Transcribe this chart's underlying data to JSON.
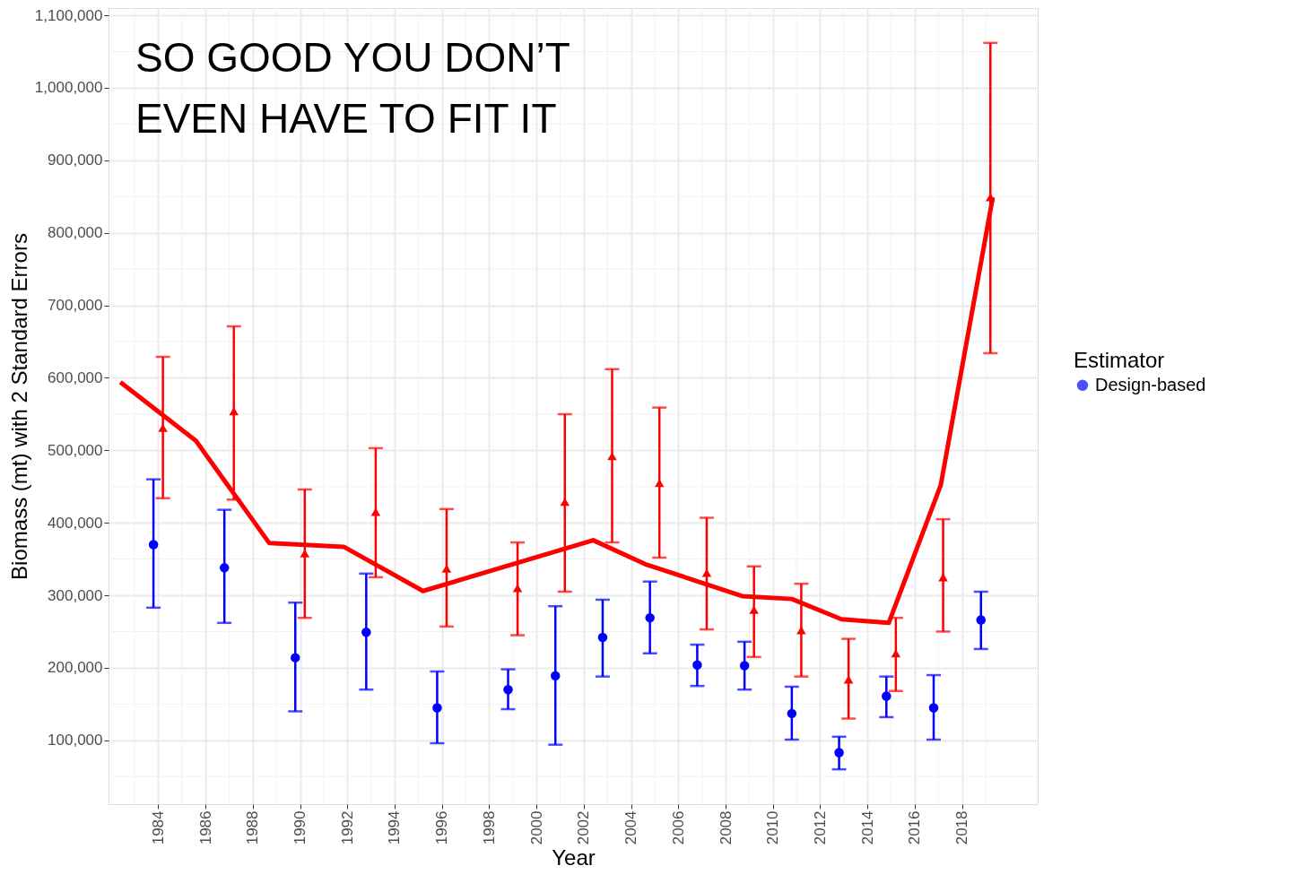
{
  "chart_data": {
    "type": "scatter",
    "title": "SO GOOD YOU DON’T EVEN HAVE TO FIT IT",
    "xlabel": "Year",
    "ylabel": "Biomass (mt) with 2 Standard Errors",
    "legend_title": "Estimator",
    "xlim": [
      1981.9,
      2021.2
    ],
    "xticks": [
      1984,
      1986,
      1988,
      1990,
      1992,
      1994,
      1996,
      1998,
      2000,
      2002,
      2004,
      2006,
      2008,
      2010,
      2012,
      2014,
      2016,
      2018
    ],
    "ylim": [
      12000,
      1110000
    ],
    "yticks": [
      {
        "value": 100000,
        "label": "100,000"
      },
      {
        "value": 200000,
        "label": "200,000"
      },
      {
        "value": 300000,
        "label": "300,000"
      },
      {
        "value": 400000,
        "label": "400,000"
      },
      {
        "value": 500000,
        "label": "500,000"
      },
      {
        "value": 600000,
        "label": "600,000"
      },
      {
        "value": 700000,
        "label": "700,000"
      },
      {
        "value": 800000,
        "label": "800,000"
      },
      {
        "value": 900000,
        "label": "900,000"
      },
      {
        "value": 1000000,
        "label": "1,000,000"
      },
      {
        "value": 1100000,
        "label": "1,100,000"
      }
    ],
    "grid": true,
    "legend": "right",
    "series": [
      {
        "name": "Design-based",
        "type": "scatter",
        "marker": "circle",
        "color": "#0000ff",
        "x": [
          1983.8,
          1986.8,
          1989.8,
          1992.8,
          1995.8,
          1998.8,
          2000.8,
          2002.8,
          2004.8,
          2006.8,
          2008.8,
          2010.8,
          2012.8,
          2014.8,
          2016.8,
          2018.8
        ],
        "values": [
          370000,
          338000,
          214000,
          249000,
          145000,
          170000,
          189000,
          242000,
          269000,
          204000,
          203000,
          137000,
          83000,
          161000,
          145000,
          266000
        ],
        "errors": [
          [
            283000,
            460000
          ],
          [
            262000,
            418000
          ],
          [
            140000,
            290000
          ],
          [
            170000,
            330000
          ],
          [
            96000,
            195000
          ],
          [
            143000,
            198000
          ],
          [
            94000,
            285000
          ],
          [
            188000,
            294000
          ],
          [
            220000,
            319000
          ],
          [
            175000,
            232000
          ],
          [
            170000,
            236000
          ],
          [
            101000,
            174000
          ],
          [
            60000,
            105000
          ],
          [
            132000,
            188000
          ],
          [
            101000,
            190000
          ],
          [
            226000,
            305000
          ]
        ]
      },
      {
        "type": "scatter",
        "marker": "triangle",
        "color": "#ff0000",
        "x": [
          1984.2,
          1987.2,
          1990.2,
          1993.2,
          1996.2,
          1999.2,
          2001.2,
          2003.2,
          2005.2,
          2007.2,
          2009.2,
          2011.2,
          2013.2,
          2015.2,
          2017.2,
          2019.2
        ],
        "values": [
          531000,
          554000,
          358000,
          415000,
          337000,
          310000,
          429000,
          492000,
          455000,
          331000,
          280000,
          252000,
          184000,
          220000,
          325000,
          849000
        ],
        "errors": [
          [
            434000,
            629000
          ],
          [
            432000,
            671000
          ],
          [
            269000,
            446000
          ],
          [
            325000,
            503000
          ],
          [
            257000,
            419000
          ],
          [
            245000,
            373000
          ],
          [
            305000,
            550000
          ],
          [
            373000,
            612000
          ],
          [
            352000,
            559000
          ],
          [
            253000,
            407000
          ],
          [
            215000,
            340000
          ],
          [
            188000,
            316000
          ],
          [
            130000,
            240000
          ],
          [
            168000,
            269000
          ],
          [
            250000,
            405000
          ],
          [
            634000,
            1062000
          ]
        ]
      },
      {
        "type": "line",
        "color": "#ff0000",
        "x": [
          1982.4,
          1985.6,
          1988.7,
          1991.85,
          1995.2,
          2002.4,
          2004.6,
          2008.7,
          2010.8,
          2012.9,
          2014.9,
          2017.1,
          2019.3
        ],
        "values": [
          594000,
          513000,
          372000,
          367000,
          306000,
          376000,
          343000,
          299000,
          295000,
          267000,
          262000,
          452000,
          849000
        ]
      }
    ]
  }
}
